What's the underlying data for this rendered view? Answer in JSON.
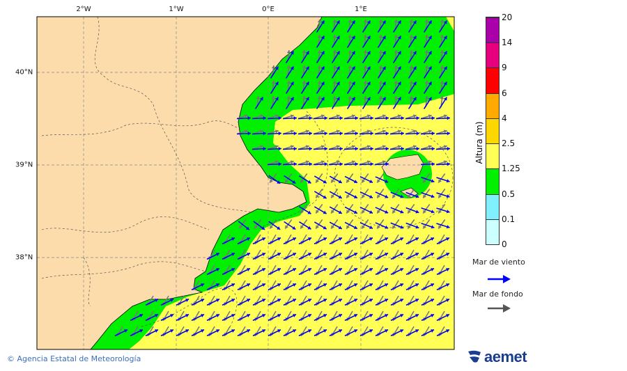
{
  "map": {
    "lon_ticks": [
      "2°W",
      "1°W",
      "0°E",
      "1°E"
    ],
    "lat_ticks": [
      "40°N",
      "39°N",
      "38°N"
    ],
    "colors": {
      "land": "#fcdcaa",
      "green": "#00f000",
      "yellow": "#ffff55",
      "wind_arrow": "#0000ff",
      "swell_arrow": "#666666"
    }
  },
  "colorbar": {
    "title": "Altura (m)",
    "levels": [
      "20",
      "14",
      "9",
      "6",
      "4",
      "2.5",
      "1.25",
      "0.5",
      "0.1",
      "0"
    ],
    "colors": [
      "#aa00aa",
      "#e6007e",
      "#ff0000",
      "#ffaa00",
      "#ffd700",
      "#ffff55",
      "#00f000",
      "#80f0ff",
      "#ccffff"
    ]
  },
  "legend": {
    "wind_sea": "Mar de viento",
    "swell": "Mar de fondo"
  },
  "footer": {
    "copyright": "© Agencia Estatal de Meteorología",
    "logo": "aemet"
  }
}
